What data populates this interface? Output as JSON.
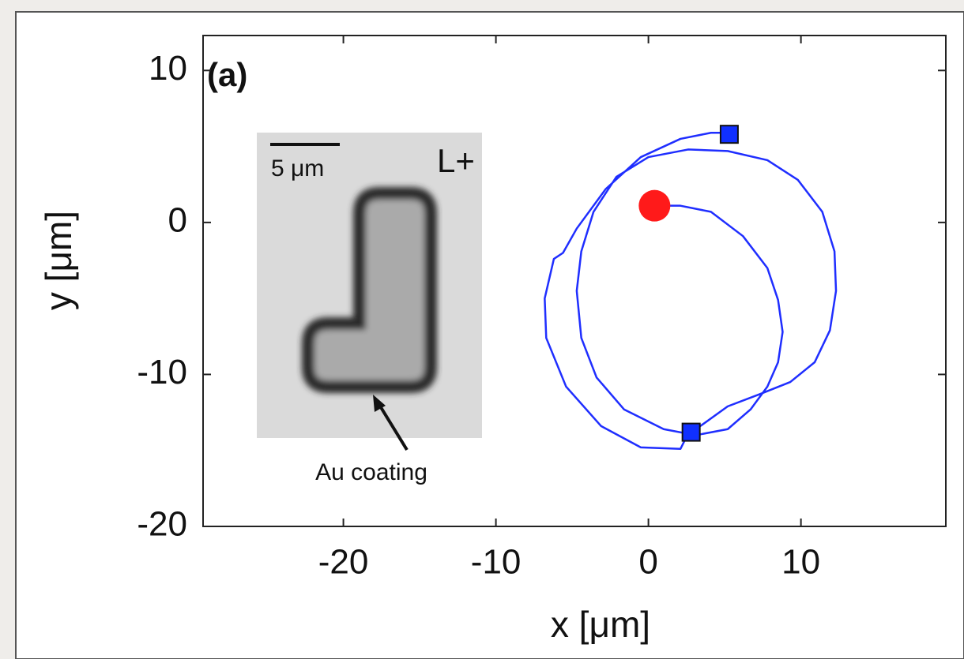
{
  "chart_data": {
    "type": "line",
    "xlabel": "x [μm]",
    "ylabel": "y [μm]",
    "xlim": [
      -29.2,
      19.5
    ],
    "ylim": [
      -20,
      12.3
    ],
    "xticks": [
      -20,
      -10,
      0,
      10
    ],
    "yticks": [
      10,
      0,
      -10,
      -20
    ],
    "annotations": [
      "(a)",
      "5 μm",
      "L+",
      "Au coating"
    ],
    "line": {
      "color": "#1f2eff",
      "x": [
        0.5,
        2.1,
        4.1,
        6.2,
        7.8,
        8.5,
        8.8,
        8.5,
        7.8,
        6.7,
        5.2,
        3.1,
        1.0,
        -1.6,
        -3.4,
        -4.4,
        -4.7,
        -4.4,
        -3.6,
        -2.1,
        0,
        2.6,
        5.2,
        7.8,
        9.8,
        11.4,
        12.2,
        12.3,
        11.9,
        10.9,
        9.3,
        7.3,
        5.2,
        3.4,
        2.7,
        2.1,
        -0.5,
        -3.1,
        -5.4,
        -6.7,
        -6.8,
        -6.2,
        -5.6,
        -4.7,
        -2.8,
        -0.5,
        2.1,
        4.1,
        5.3
      ],
      "y": [
        1.1,
        1.1,
        0.7,
        -0.9,
        -3.0,
        -5.1,
        -7.2,
        -9.2,
        -10.8,
        -12.3,
        -13.6,
        -14.0,
        -13.6,
        -12.3,
        -10.2,
        -7.6,
        -4.5,
        -1.9,
        0.7,
        3.0,
        4.3,
        4.8,
        4.7,
        4.1,
        2.8,
        0.7,
        -1.9,
        -4.5,
        -7.1,
        -9.2,
        -10.5,
        -11.3,
        -12.1,
        -13.4,
        -13.7,
        -14.9,
        -14.8,
        -13.4,
        -10.8,
        -7.6,
        -5.0,
        -2.4,
        -2.0,
        -0.4,
        2.2,
        4.3,
        5.5,
        5.9,
        5.9
      ]
    },
    "start": {
      "color": "#ff1a1a",
      "x": 0.4,
      "y": 1.1
    },
    "ends": {
      "color": "#1030ff",
      "x": [
        5.3,
        2.8
      ],
      "y": [
        5.8,
        -13.8
      ]
    }
  }
}
